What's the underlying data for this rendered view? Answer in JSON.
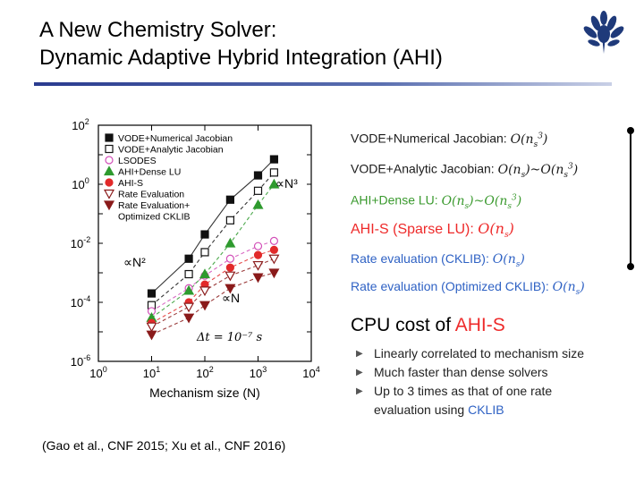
{
  "title": {
    "line1": "A New Chemistry Solver:",
    "line2": "Dynamic Adaptive Hybrid Integration (AHI)"
  },
  "logo": {
    "icon": "oak-leaf-crest-icon",
    "color": "#1f3a7a"
  },
  "chart_data": {
    "type": "scatter",
    "xlabel": "Mechanism size (N)",
    "ylabel": "",
    "xscale": "log",
    "yscale": "log",
    "xlim": [
      1,
      10000
    ],
    "ylim": [
      1e-06,
      100
    ],
    "x_tick_labels": [
      "10^0",
      "10^1",
      "10^2",
      "10^3",
      "10^4"
    ],
    "y_tick_labels": [
      "10^2",
      "10^0",
      "10^-2",
      "10^-4",
      "10^-6"
    ],
    "grid": false,
    "legend_placement": "top-left",
    "x": [
      10,
      50,
      100,
      300,
      1000,
      2000
    ],
    "series": [
      {
        "name": "VODE+Numerical Jacobian",
        "marker": "square-filled",
        "color": "#111111",
        "values": [
          0.0002,
          0.003,
          0.02,
          0.3,
          2,
          7
        ]
      },
      {
        "name": "VODE+Analytic Jacobian",
        "marker": "square-open",
        "color": "#111111",
        "values": [
          8e-05,
          0.0009,
          0.005,
          0.06,
          0.6,
          2.5
        ]
      },
      {
        "name": "LSODES",
        "marker": "circle-open",
        "color": "#d24fb8",
        "values": [
          5e-05,
          0.0003,
          0.0008,
          0.003,
          0.008,
          0.012
        ]
      },
      {
        "name": "AHI+Dense LU",
        "marker": "triangle-up-filled",
        "color": "#2e9a2e",
        "values": [
          3e-05,
          0.00025,
          0.0009,
          0.01,
          0.2,
          1
        ]
      },
      {
        "name": "AHI-S",
        "marker": "circle-filled",
        "color": "#e22a2a",
        "values": [
          2e-05,
          0.0001,
          0.0004,
          0.0015,
          0.004,
          0.006
        ]
      },
      {
        "name": "Rate Evaluation",
        "marker": "triangle-down-open",
        "color": "#8a1a1a",
        "values": [
          1.5e-05,
          7e-05,
          0.00025,
          0.0008,
          0.0018,
          0.003
        ]
      },
      {
        "name": "Rate Evaluation+ Optimized CKLIB",
        "marker": "triangle-down-filled",
        "color": "#8a1a1a",
        "values": [
          8e-06,
          3e-05,
          8e-05,
          0.0003,
          0.0007,
          0.001
        ]
      }
    ],
    "annotations": [
      "∝N³",
      "∝N²",
      "∝N",
      "Δt = 10⁻⁷ s"
    ]
  },
  "citation": "(Gao et al., CNF 2015; Xu et al., CNF 2016)",
  "legend_right": {
    "items": [
      {
        "label": "VODE+Numerical  Jacobian: ",
        "math": "O(n_s^3)",
        "color": "#1a1a1a"
      },
      {
        "label": "VODE+Analytic  Jacobian: ",
        "math": "O(n_s)~O(n_s^3)",
        "color": "#1a1a1a"
      },
      {
        "label": "AHI+Dense  LU: ",
        "math": "O(n_s)~O(n_s^3)",
        "color": "#3b9a2f"
      },
      {
        "label": "AHI-S (Sparse  LU): ",
        "math": "O(n_s)",
        "color": "#ee2a2a"
      },
      {
        "label": "Rate  evaluation  (CKLIB): ",
        "math": "O(n_s)",
        "color": "#2f62c4"
      },
      {
        "label": "Rate  evaluation  (Optimized  CKLIB): ",
        "math": "O(n_s)",
        "color": "#2f62c4"
      }
    ]
  },
  "cpu": {
    "title_prefix": "CPU cost of ",
    "title_accent": "AHI-S",
    "bullets": [
      "Linearly correlated to mechanism size",
      "Much faster than dense solvers",
      "Up to 3 times as that of one rate"
    ],
    "bullet3_cont_prefix": "evaluation  using ",
    "bullet3_cont_accent": "CKLIB"
  }
}
